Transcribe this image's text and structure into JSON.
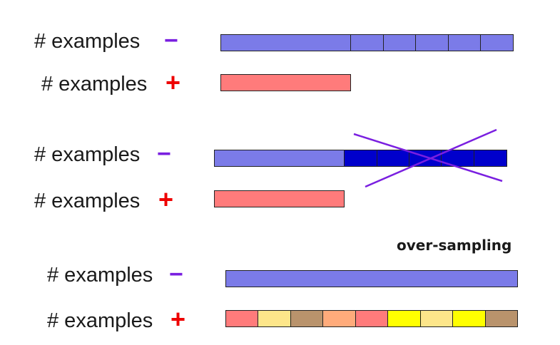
{
  "colors": {
    "majority": "#7b7be8",
    "removed": "#0000cc",
    "minority": "#ff7b7b",
    "cross": "#7a1fe0",
    "plus_sign": "#ee0000",
    "minus_sign": "#7a1fe0",
    "oversample_palette": [
      "#ff7b7b",
      "#fde68a",
      "#b9936c",
      "#ffab7b",
      "#ff7b7b",
      "#ffff00",
      "#fde68a",
      "#ffff00",
      "#b9936c"
    ]
  },
  "panels": [
    {
      "neg_label": "# examples",
      "neg_sign": "−",
      "pos_label": "# examples",
      "pos_sign": "+"
    },
    {
      "neg_label": "# examples",
      "neg_sign": "−",
      "pos_label": "# examples",
      "pos_sign": "+"
    },
    {
      "heading": "over-sampling",
      "neg_label": "# examples",
      "neg_sign": "−",
      "pos_label": "# examples",
      "pos_sign": "+"
    }
  ]
}
